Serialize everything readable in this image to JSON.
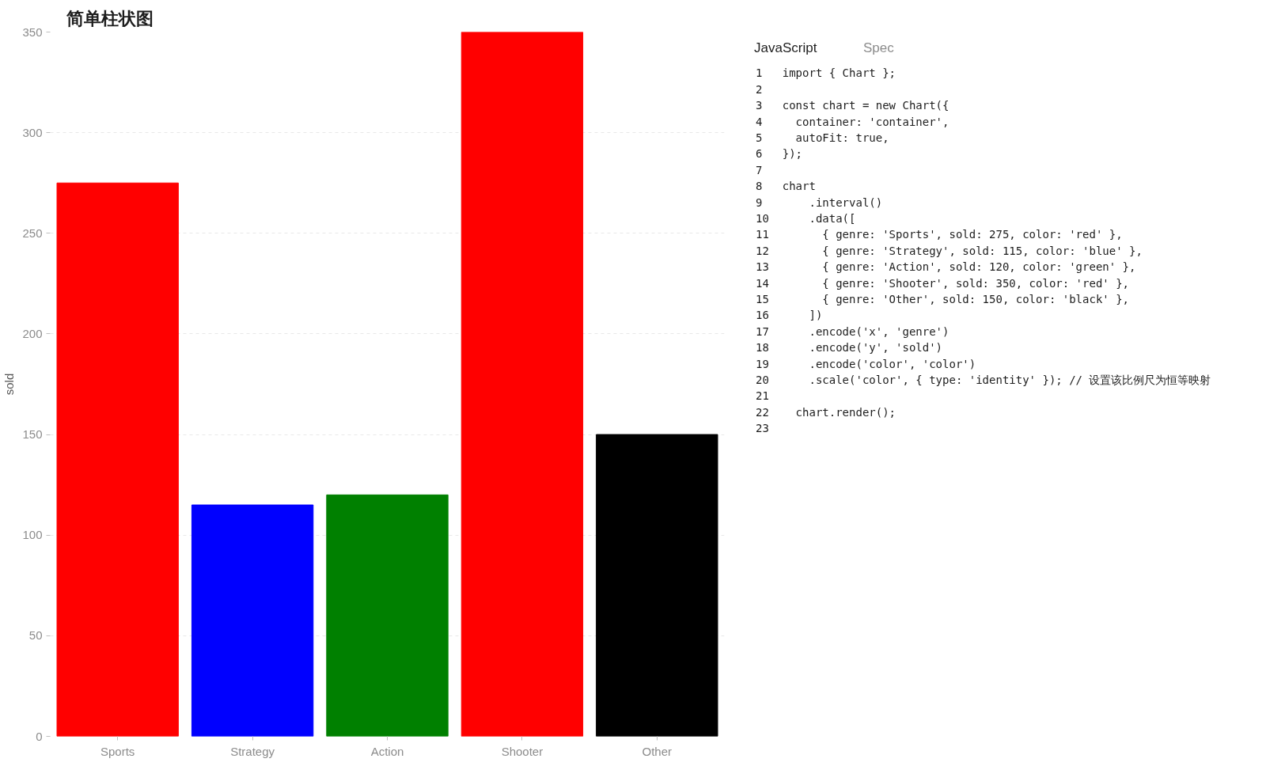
{
  "chart_data": [
    {
      "type": "bar",
      "title": "简单柱状图",
      "ylabel": "sold",
      "categories": [
        "Sports",
        "Strategy",
        "Action",
        "Shooter",
        "Other"
      ],
      "values": [
        275,
        115,
        120,
        350,
        150
      ],
      "colors": [
        "#ff0000",
        "#0000ff",
        "#008000",
        "#ff0000",
        "#000000"
      ],
      "ylim": [
        0,
        350
      ],
      "yticks": [
        0,
        50,
        100,
        150,
        200,
        250,
        300,
        350
      ],
      "grid": "y"
    },
    {
      "type": "other",
      "annotations": [
        "JavaScript",
        "Spec",
        "1 import { Chart };",
        "2 ",
        "3 const chart = new Chart({",
        "4   container: 'container',",
        "5   autoFit: true,",
        "6 });",
        "7 ",
        "8 chart",
        "9     .interval()",
        "10     .data([",
        "11       { genre: 'Sports', sold: 275, color: 'red' },",
        "12       { genre: 'Strategy', sold: 115, color: 'blue' },",
        "13       { genre: 'Action', sold: 120, color: 'green' },",
        "14       { genre: 'Shooter', sold: 350, color: 'red' },",
        "15       { genre: 'Other', sold: 150, color: 'black' },",
        "16     ])",
        "17     .encode('x', 'genre')",
        "18     .encode('y', 'sold')",
        "19     .encode('color', 'color')",
        "20     .scale('color', { type: 'identity' }); // 设置该比例尺为恒等映射",
        "21 ",
        "22   chart.render();",
        "23 "
      ]
    }
  ]
}
